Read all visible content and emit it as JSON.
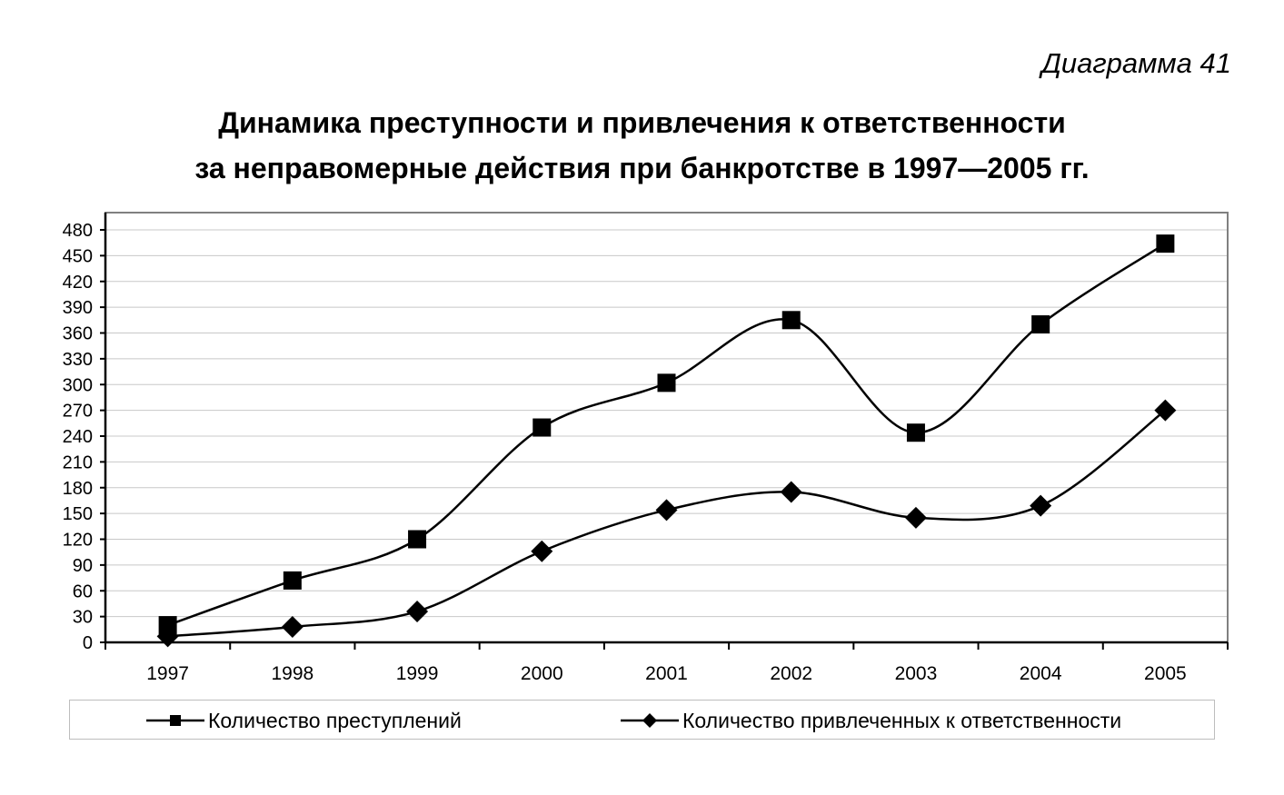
{
  "diagram_number": "Диаграмма 41",
  "chart_data": {
    "type": "line",
    "title_lines": [
      "Динамика преступности и привлечения к ответственности",
      "за неправомерные действия при банкротстве в 1997—2005 гг."
    ],
    "xlabel": "",
    "ylabel": "",
    "categories": [
      "1997",
      "1998",
      "1999",
      "2000",
      "2001",
      "2002",
      "2003",
      "2004",
      "2005"
    ],
    "ylim": [
      0,
      480
    ],
    "yticks": [
      0,
      30,
      60,
      90,
      120,
      150,
      180,
      210,
      240,
      270,
      300,
      330,
      360,
      390,
      420,
      450,
      480
    ],
    "grid": true,
    "smoothed": true,
    "legend_position": "bottom",
    "series": [
      {
        "name": "Количество преступлений",
        "marker": "square",
        "color": "#000000",
        "values": [
          20,
          72,
          120,
          250,
          302,
          375,
          244,
          370,
          464
        ]
      },
      {
        "name": "Количество привлеченных к ответственности",
        "marker": "diamond",
        "color": "#000000",
        "values": [
          7,
          18,
          36,
          106,
          154,
          175,
          145,
          159,
          270
        ]
      }
    ]
  }
}
